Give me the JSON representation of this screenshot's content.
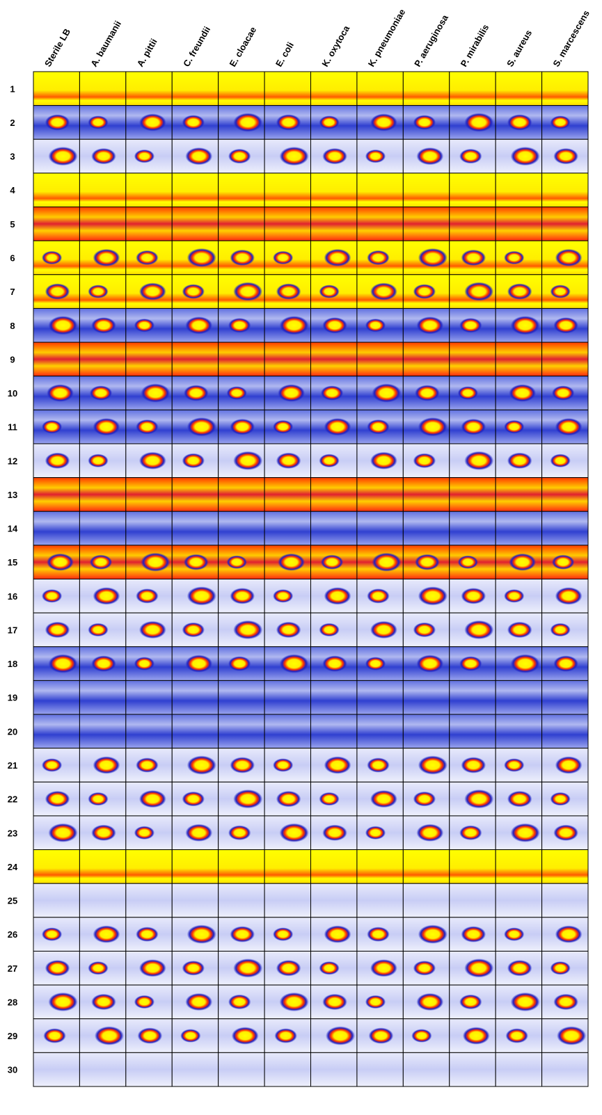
{
  "columns": [
    "Sterile LB",
    "A. baumanii",
    "A. pittii",
    "C. freundii",
    "E. cloacae",
    "E. coli",
    "K. oxytoca",
    "K. pneumoniae",
    "P. aeruginosa",
    "P. mirabilis",
    "S. aureus",
    "S. marcescens"
  ],
  "rows": [
    "1",
    "2",
    "3",
    "4",
    "5",
    "6",
    "7",
    "8",
    "9",
    "10",
    "11",
    "12",
    "13",
    "14",
    "15",
    "16",
    "17",
    "18",
    "19",
    "20",
    "21",
    "22",
    "23",
    "24",
    "25",
    "26",
    "27",
    "28",
    "29",
    "30"
  ]
}
